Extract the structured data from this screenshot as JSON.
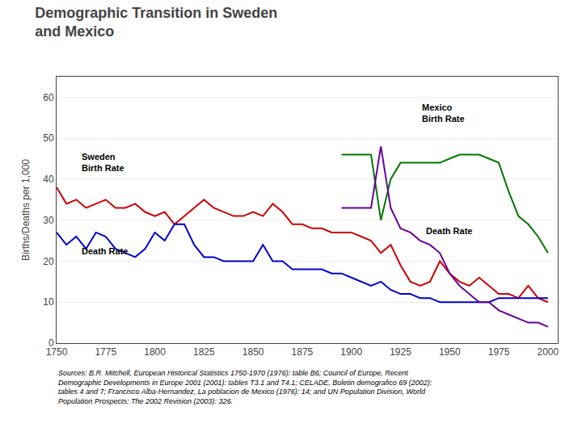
{
  "chart_data": {
    "type": "line",
    "title": "Demographic Transition in Sweden\nand Mexico",
    "ylabel": "Births/Deaths per 1,000",
    "xlim": [
      1750,
      2005
    ],
    "ylim": [
      0,
      65
    ],
    "yticks": [
      0,
      10,
      20,
      30,
      40,
      50,
      60
    ],
    "xticks": [
      1750,
      1775,
      1800,
      1825,
      1850,
      1875,
      1900,
      1925,
      1950,
      1975,
      2000
    ],
    "grid": "y",
    "series": [
      {
        "color": "#cc0000",
        "x": [
          1750,
          1755,
          1760,
          1765,
          1770,
          1775,
          1780,
          1785,
          1790,
          1795,
          1800,
          1805,
          1810,
          1815,
          1820,
          1825,
          1830,
          1835,
          1840,
          1845,
          1850,
          1855,
          1860,
          1865,
          1870,
          1875,
          1880,
          1885,
          1890,
          1895,
          1900,
          1905,
          1910,
          1915,
          1920,
          1925,
          1930,
          1935,
          1940,
          1945,
          1950,
          1955,
          1960,
          1965,
          1970,
          1975,
          1980,
          1985,
          1990,
          1995,
          2000
        ],
        "values": [
          38,
          34,
          35,
          33,
          34,
          35,
          33,
          33,
          34,
          32,
          31,
          32,
          29,
          31,
          33,
          35,
          33,
          32,
          31,
          31,
          32,
          31,
          34,
          32,
          29,
          29,
          28,
          28,
          27,
          27,
          27,
          26,
          25,
          22,
          24,
          19,
          15,
          14,
          15,
          20,
          17,
          15,
          14,
          16,
          14,
          12,
          12,
          11,
          14,
          11,
          10
        ]
      },
      {
        "color": "#0000cc",
        "x": [
          1750,
          1755,
          1760,
          1765,
          1770,
          1775,
          1780,
          1785,
          1790,
          1795,
          1800,
          1805,
          1810,
          1815,
          1820,
          1825,
          1830,
          1835,
          1840,
          1845,
          1850,
          1855,
          1860,
          1865,
          1870,
          1875,
          1880,
          1885,
          1890,
          1895,
          1900,
          1905,
          1910,
          1915,
          1920,
          1925,
          1930,
          1935,
          1940,
          1945,
          1950,
          1955,
          1960,
          1965,
          1970,
          1975,
          1980,
          1985,
          1990,
          1995,
          2000
        ],
        "values": [
          27,
          24,
          26,
          23,
          27,
          26,
          23,
          22,
          21,
          23,
          27,
          25,
          29,
          29,
          24,
          21,
          21,
          20,
          20,
          20,
          20,
          24,
          20,
          20,
          18,
          18,
          18,
          18,
          17,
          17,
          16,
          15,
          14,
          15,
          13,
          12,
          12,
          11,
          11,
          10,
          10,
          10,
          10,
          10,
          10,
          11,
          11,
          11,
          11,
          11,
          11
        ]
      },
      {
        "color": "#007700",
        "x": [
          1895,
          1900,
          1905,
          1910,
          1915,
          1920,
          1925,
          1930,
          1935,
          1940,
          1945,
          1950,
          1955,
          1960,
          1965,
          1970,
          1975,
          1980,
          1985,
          1990,
          1995,
          2000
        ],
        "values": [
          46,
          46,
          46,
          46,
          30,
          40,
          44,
          44,
          44,
          44,
          44,
          45,
          46,
          46,
          46,
          45,
          44,
          37,
          31,
          29,
          26,
          22
        ]
      },
      {
        "color": "#660099",
        "x": [
          1895,
          1900,
          1905,
          1910,
          1915,
          1920,
          1925,
          1930,
          1935,
          1940,
          1945,
          1950,
          1955,
          1960,
          1965,
          1970,
          1975,
          1980,
          1985,
          1990,
          1995,
          2000
        ],
        "values": [
          33,
          33,
          33,
          33,
          48,
          33,
          28,
          27,
          25,
          24,
          22,
          17,
          14,
          12,
          10,
          10,
          8,
          7,
          6,
          5,
          5,
          4
        ]
      }
    ],
    "annotations": [
      {
        "text": "Sweden\nBirth Rate",
        "x": 1762,
        "y": 47
      },
      {
        "text": "Death Rate",
        "x": 1762,
        "y": 24
      },
      {
        "text": "Mexico\nBirth Rate",
        "x": 1935,
        "y": 59
      },
      {
        "text": "Death Rate",
        "x": 1937,
        "y": 29
      }
    ],
    "source": "Sources: B.R. Mitchell, European Historical Statistics 1750-1970 (1976): table B6; Council of Europe, Recent\nDemographic Developments in Europe 2001 (2001): tables T3.1 and T4.1; CELADE, Boletin demografico 69 (2002):\ntables 4 and 7; Francisco Alba-Hernandez, La poblacion de Mexico (1976): 14; and UN Population Division, World\nPopulation Prospects: The 2002 Revision (2003): 326."
  }
}
